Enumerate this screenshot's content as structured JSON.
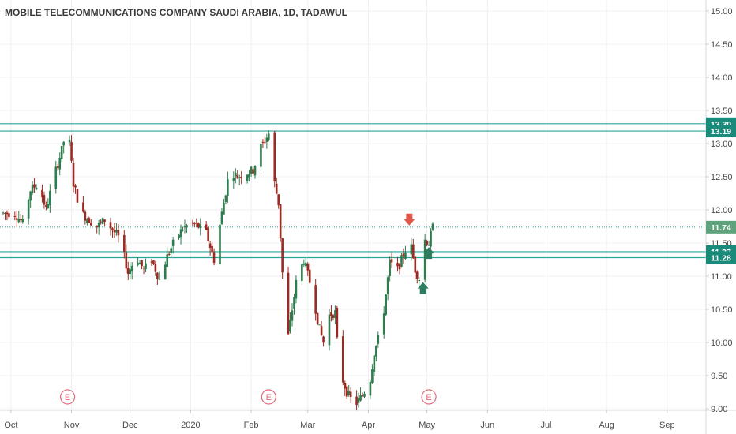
{
  "chart_data": {
    "type": "candlestick",
    "title": "MOBILE TELECOMMUNICATIONS COMPANY SAUDI ARABIA, 1D, TADAWUL",
    "ylim": [
      9.0,
      15.15
    ],
    "y_ticks": [
      "15.00",
      "14.50",
      "14.00",
      "13.50",
      "13.00",
      "12.50",
      "12.00",
      "11.50",
      "11.00",
      "10.50",
      "10.00",
      "9.50",
      "9.00"
    ],
    "x_ticks": [
      "Oct",
      "Nov",
      "Dec",
      "2020",
      "Feb",
      "Mar",
      "Apr",
      "May",
      "Jun",
      "Jul",
      "Aug",
      "Sep"
    ],
    "x_range_days": [
      0,
      351
    ],
    "x_tick_days": [
      4,
      35,
      65,
      96,
      127,
      156,
      187,
      217,
      248,
      278,
      309,
      340
    ],
    "horizontal_levels": [
      {
        "value": 13.3,
        "label": "13.30"
      },
      {
        "value": 13.19,
        "label": "13.19"
      },
      {
        "value": 11.37,
        "label": "11.37"
      },
      {
        "value": 11.28,
        "label": "11.28"
      }
    ],
    "last_price": {
      "value": 11.74,
      "label": "11.74"
    },
    "earnings_markers": [
      {
        "day": 33,
        "label": "E"
      },
      {
        "day": 136,
        "label": "E"
      },
      {
        "day": 218,
        "label": "E"
      }
    ],
    "signals": [
      {
        "type": "sell",
        "day": 208,
        "price": 11.8
      },
      {
        "type": "buy",
        "day": 215,
        "price": 10.85
      },
      {
        "type": "buy",
        "day": 218,
        "price": 11.38
      }
    ],
    "control_points": [
      [
        0,
        11.95
      ],
      [
        6,
        11.95
      ],
      [
        10,
        11.8
      ],
      [
        14,
        12.3
      ],
      [
        18,
        12.4
      ],
      [
        22,
        12.0
      ],
      [
        26,
        12.5
      ],
      [
        30,
        12.9
      ],
      [
        33,
        13.3
      ],
      [
        36,
        12.4
      ],
      [
        40,
        11.95
      ],
      [
        44,
        11.85
      ],
      [
        48,
        11.75
      ],
      [
        52,
        11.85
      ],
      [
        56,
        11.7
      ],
      [
        60,
        11.55
      ],
      [
        64,
        11.05
      ],
      [
        68,
        11.3
      ],
      [
        72,
        11.1
      ],
      [
        76,
        11.25
      ],
      [
        80,
        10.95
      ],
      [
        84,
        11.3
      ],
      [
        88,
        11.55
      ],
      [
        92,
        11.72
      ],
      [
        96,
        11.8
      ],
      [
        100,
        11.75
      ],
      [
        104,
        11.65
      ],
      [
        108,
        11.25
      ],
      [
        112,
        11.95
      ],
      [
        116,
        12.6
      ],
      [
        120,
        12.5
      ],
      [
        124,
        12.55
      ],
      [
        128,
        12.6
      ],
      [
        132,
        12.95
      ],
      [
        136,
        13.15
      ],
      [
        139,
        12.4
      ],
      [
        141,
        12.1
      ],
      [
        142,
        11.6
      ],
      [
        144,
        10.5
      ],
      [
        146,
        10.1
      ],
      [
        150,
        10.9
      ],
      [
        154,
        11.25
      ],
      [
        158,
        10.8
      ],
      [
        162,
        10.2
      ],
      [
        164,
        10.0
      ],
      [
        166,
        10.4
      ],
      [
        170,
        10.45
      ],
      [
        172,
        9.6
      ],
      [
        176,
        9.25
      ],
      [
        180,
        9.05
      ],
      [
        184,
        9.2
      ],
      [
        188,
        9.45
      ],
      [
        190,
        9.85
      ],
      [
        194,
        10.25
      ],
      [
        198,
        11.2
      ],
      [
        202,
        11.1
      ],
      [
        206,
        11.4
      ],
      [
        208,
        11.6
      ],
      [
        211,
        11.1
      ],
      [
        214,
        10.9
      ],
      [
        216,
        11.55
      ],
      [
        218,
        11.5
      ],
      [
        220,
        11.74
      ]
    ]
  }
}
